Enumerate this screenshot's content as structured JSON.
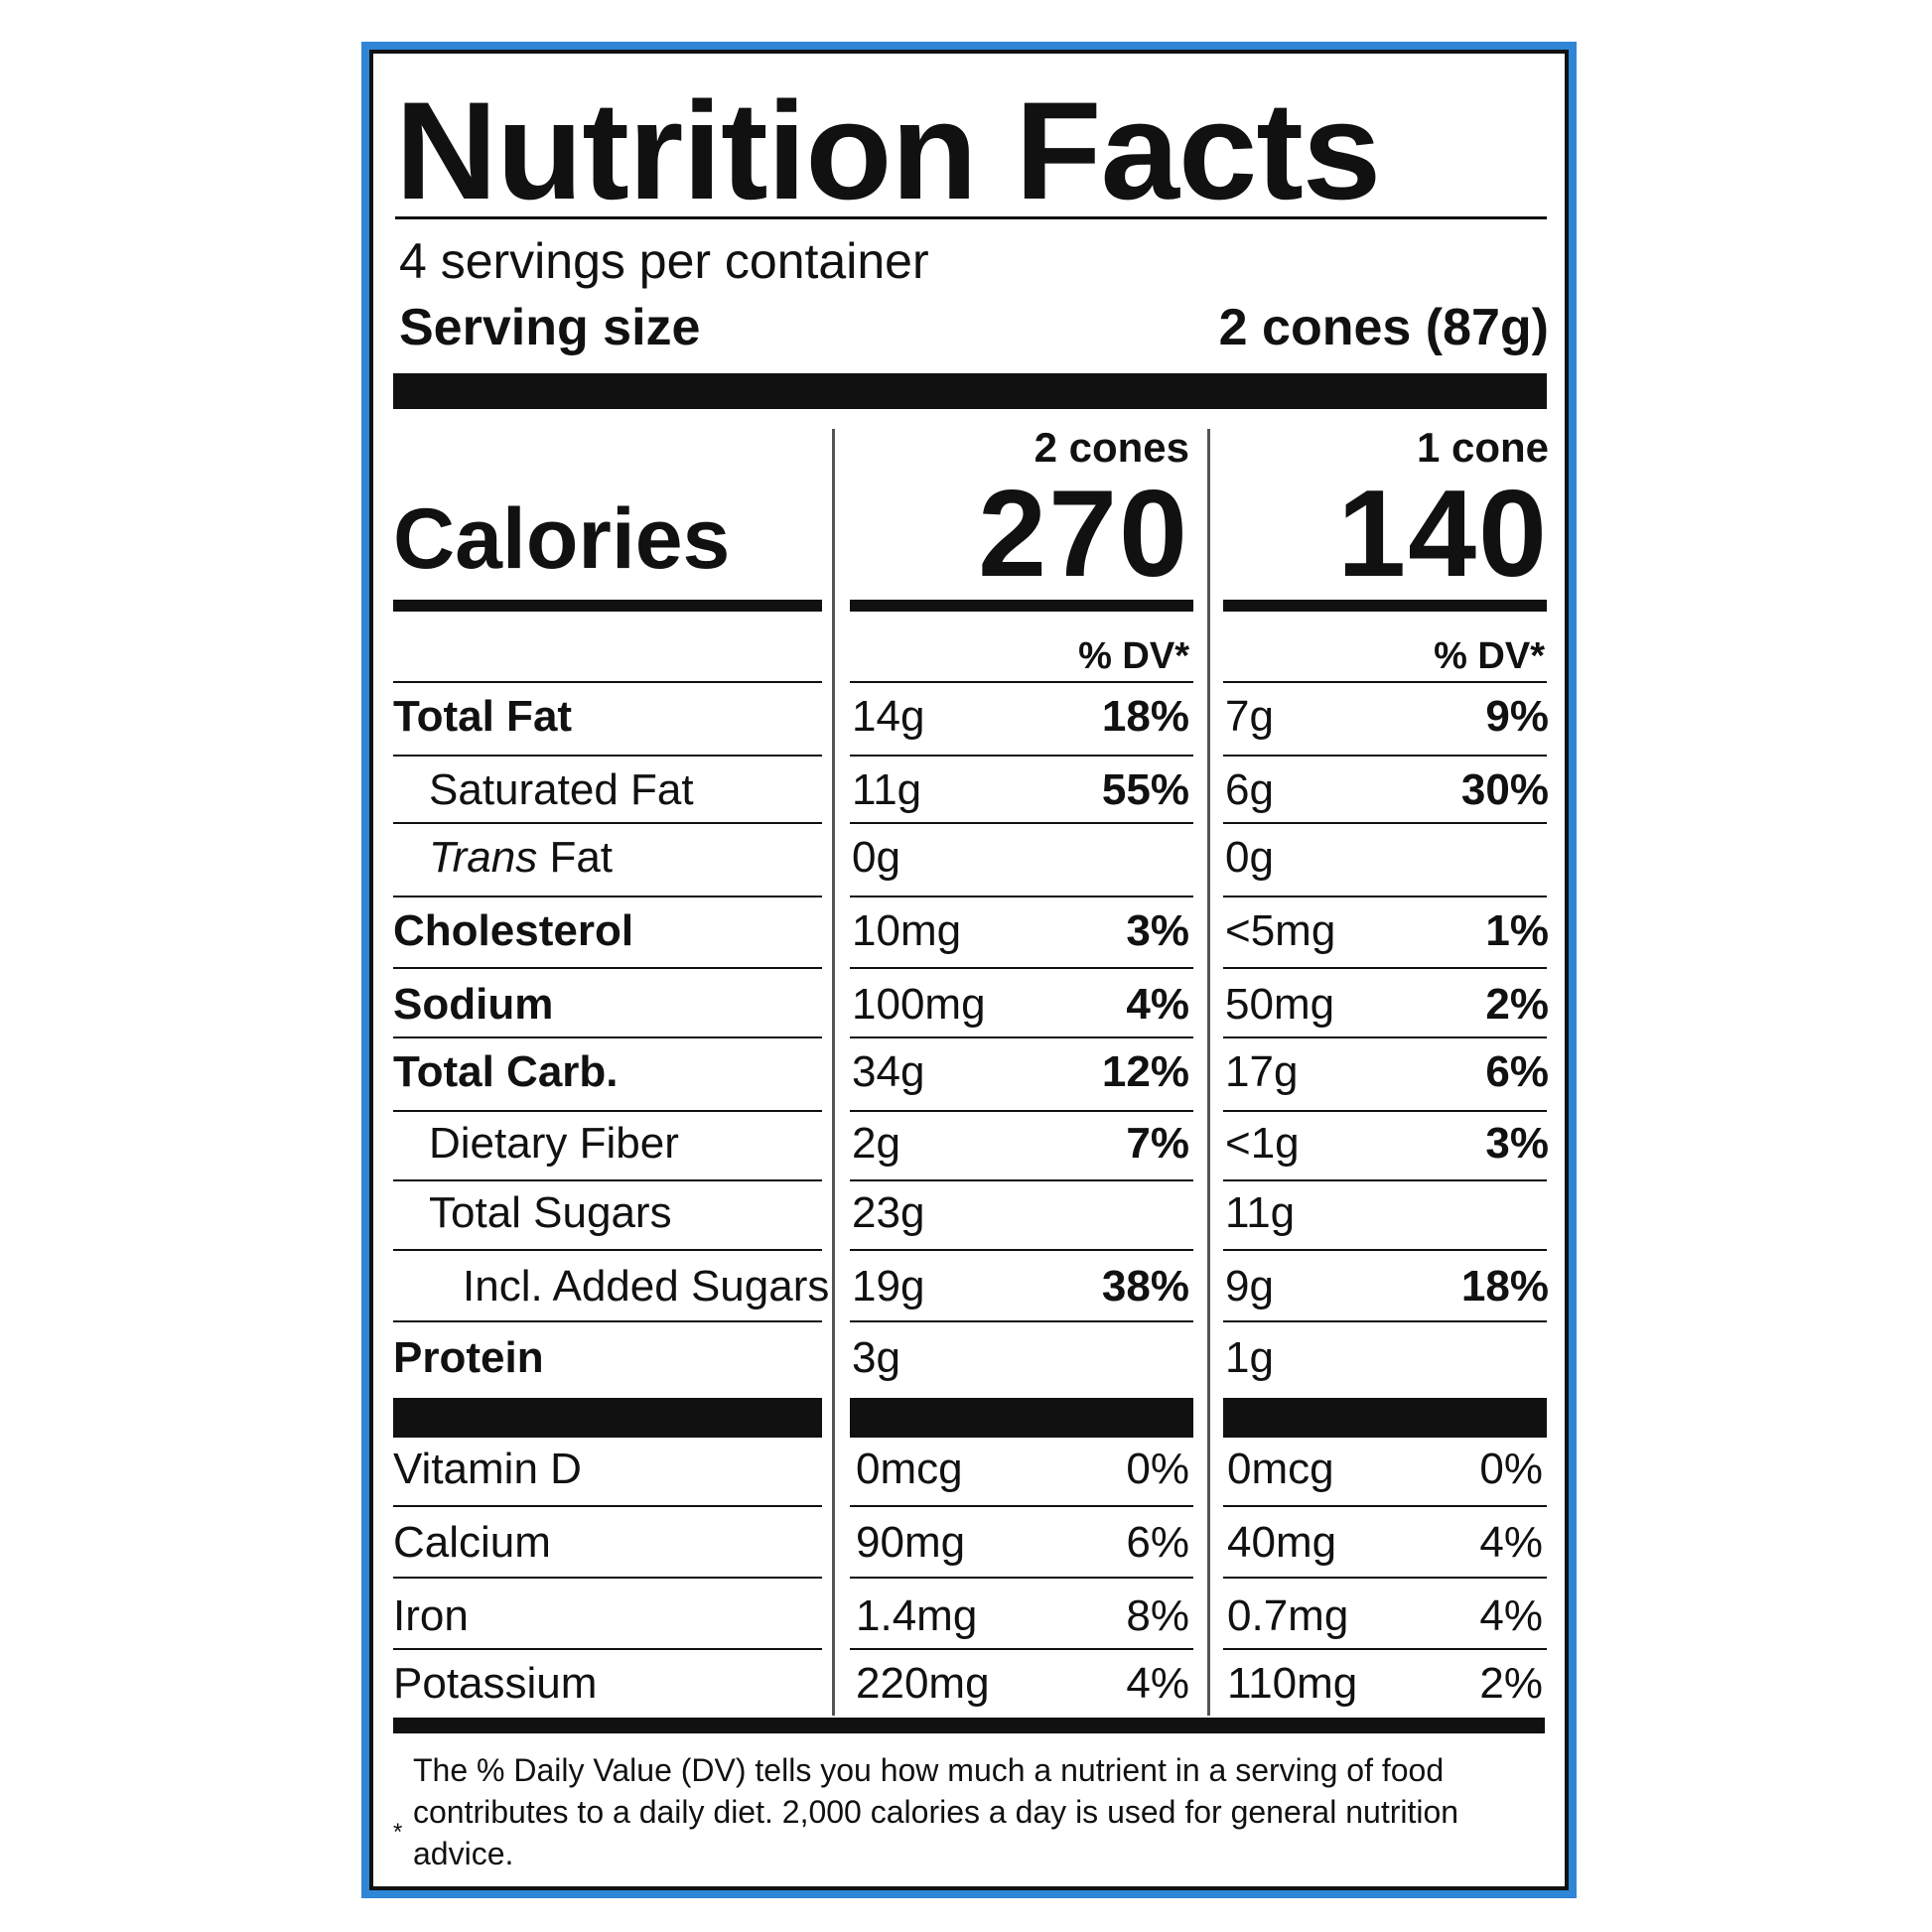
{
  "label": {
    "title": "Nutrition Facts",
    "servings_per_container": "4 servings per container",
    "serving_size_label": "Serving size",
    "serving_size_value": "2 cones (87g)",
    "calories_label": "Calories",
    "columns": [
      {
        "header": "2 cones",
        "calories": "270",
        "dv_header": "% DV*"
      },
      {
        "header": "1 cone",
        "calories": "140",
        "dv_header": "% DV*"
      }
    ],
    "nutrients": [
      {
        "label": "Total Fat",
        "c1": "14g",
        "p1": "18%",
        "c2": "7g",
        "p2": "9%"
      },
      {
        "label": "Saturated Fat",
        "c1": "11g",
        "p1": "55%",
        "c2": "6g",
        "p2": "30%"
      },
      {
        "label_italic": "Trans",
        "label": " Fat",
        "c1": "0g",
        "p1": "",
        "c2": "0g",
        "p2": ""
      },
      {
        "label": "Cholesterol",
        "c1": "10mg",
        "p1": "3%",
        "c2": "<5mg",
        "p2": "1%"
      },
      {
        "label": "Sodium",
        "c1": "100mg",
        "p1": "4%",
        "c2": "50mg",
        "p2": "2%"
      },
      {
        "label": "Total Carb.",
        "c1": "34g",
        "p1": "12%",
        "c2": "17g",
        "p2": "6%"
      },
      {
        "label": "Dietary Fiber",
        "c1": "2g",
        "p1": "7%",
        "c2": "<1g",
        "p2": "3%"
      },
      {
        "label": "Total Sugars",
        "c1": "23g",
        "p1": "",
        "c2": "11g",
        "p2": ""
      },
      {
        "label": "Incl. Added Sugars",
        "c1": "19g",
        "p1": "38%",
        "c2": "9g",
        "p2": "18%"
      },
      {
        "label": "Protein",
        "c1": "3g",
        "p1": "",
        "c2": "1g",
        "p2": ""
      }
    ],
    "vitamins": [
      {
        "label": "Vitamin D",
        "c1": "0mcg",
        "p1": "0%",
        "c2": "0mcg",
        "p2": "0%"
      },
      {
        "label": "Calcium",
        "c1": "90mg",
        "p1": "6%",
        "c2": "40mg",
        "p2": "4%"
      },
      {
        "label": "Iron",
        "c1": "1.4mg",
        "p1": "8%",
        "c2": "0.7mg",
        "p2": "4%"
      },
      {
        "label": "Potassium",
        "c1": "220mg",
        "p1": "4%",
        "c2": "110mg",
        "p2": "2%"
      }
    ],
    "footnote_star": "*",
    "footnote": "The % Daily Value (DV) tells you how much a nutrient in a serving of food contributes to a daily diet. 2,000 calories a day is used for general nutrition advice."
  },
  "colors": {
    "frame_border": "#2f86d6",
    "ink": "#111111"
  }
}
